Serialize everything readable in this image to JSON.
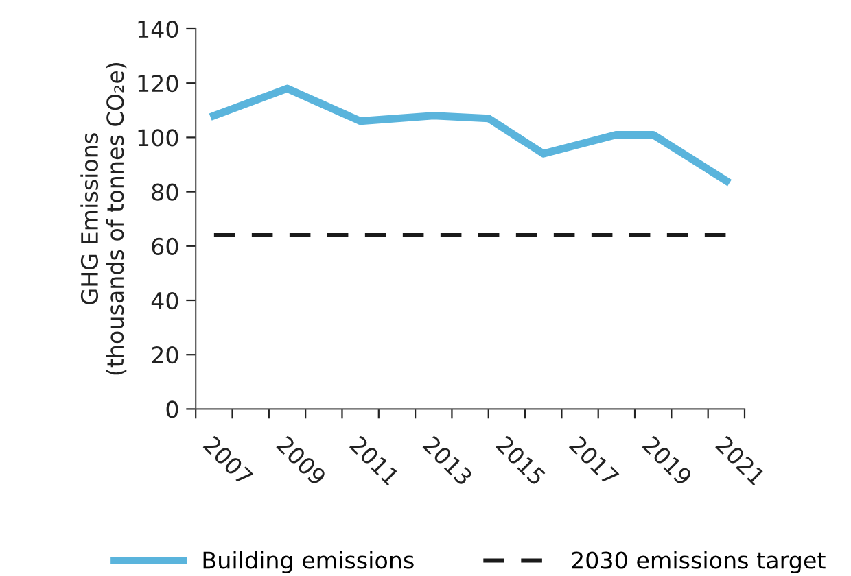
{
  "chart_data": {
    "type": "line",
    "ylabel": "GHG Emissions\n(thousands of tonnes CO₂e)",
    "series": [
      {
        "name": "Building emissions",
        "color": "#5ab4dc",
        "x": [
          2007,
          2009,
          2011,
          2013,
          2014.5,
          2016,
          2018,
          2019,
          2021
        ],
        "values": [
          108,
          118,
          106,
          108,
          107,
          94,
          101,
          101,
          84
        ],
        "line_style": "solid"
      },
      {
        "name": "2030 emissions target",
        "color": "#1a1a1a",
        "x": [
          2007,
          2021
        ],
        "values": [
          64,
          64
        ],
        "line_style": "dashed"
      }
    ],
    "xlim": [
      2006.5,
      2021.5
    ],
    "xticks": [
      {
        "value": 2006.5,
        "label": null
      },
      {
        "value": 2007,
        "label": "2007"
      },
      {
        "value": 2007.5,
        "label": null
      },
      {
        "value": 2008.5,
        "label": null
      },
      {
        "value": 2009,
        "label": "2009"
      },
      {
        "value": 2009.5,
        "label": null
      },
      {
        "value": 2010.5,
        "label": null
      },
      {
        "value": 2011,
        "label": "2011"
      },
      {
        "value": 2011.5,
        "label": null
      },
      {
        "value": 2012.5,
        "label": null
      },
      {
        "value": 2013,
        "label": "2013"
      },
      {
        "value": 2013.5,
        "label": null
      },
      {
        "value": 2014.5,
        "label": null
      },
      {
        "value": 2015,
        "label": "2015"
      },
      {
        "value": 2015.5,
        "label": null
      },
      {
        "value": 2016.5,
        "label": null
      },
      {
        "value": 2017,
        "label": "2017"
      },
      {
        "value": 2017.5,
        "label": null
      },
      {
        "value": 2018.5,
        "label": null
      },
      {
        "value": 2019,
        "label": "2019"
      },
      {
        "value": 2019.5,
        "label": null
      },
      {
        "value": 2020.5,
        "label": null
      },
      {
        "value": 2021,
        "label": "2021"
      },
      {
        "value": 2021.5,
        "label": null
      }
    ],
    "ylim": [
      0,
      140
    ],
    "yticks": [
      0,
      20,
      40,
      60,
      80,
      100,
      120,
      140
    ],
    "grid": false,
    "legend": "bottom",
    "marker": "none"
  }
}
